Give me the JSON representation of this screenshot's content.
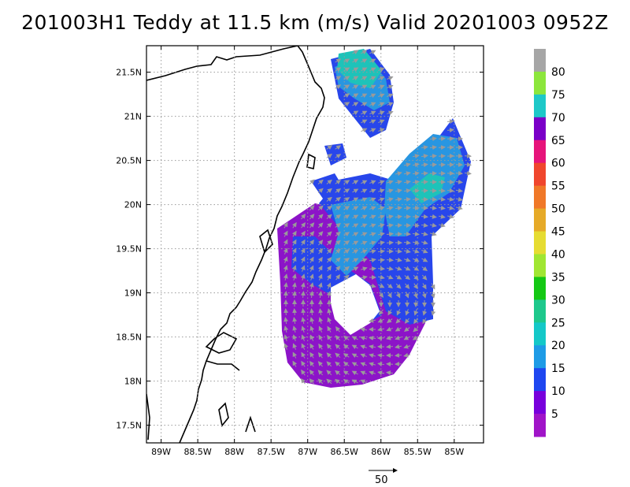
{
  "title": "201003H1 Teddy at 11.5 km (m/s) Valid 20201003 0952Z",
  "map": {
    "lon_range": [
      -89.2,
      -84.6
    ],
    "lat_range": [
      17.3,
      21.8
    ],
    "lat_ticks": [
      {
        "value": 21.5,
        "label": "21.5N"
      },
      {
        "value": 21.0,
        "label": "21N"
      },
      {
        "value": 20.5,
        "label": "20.5N"
      },
      {
        "value": 20.0,
        "label": "20N"
      },
      {
        "value": 19.5,
        "label": "19.5N"
      },
      {
        "value": 19.0,
        "label": "19N"
      },
      {
        "value": 18.5,
        "label": "18.5N"
      },
      {
        "value": 18.0,
        "label": "18N"
      },
      {
        "value": 17.5,
        "label": "17.5N"
      }
    ],
    "lon_ticks": [
      {
        "value": -89.0,
        "label": "89W"
      },
      {
        "value": -88.5,
        "label": "88.5W"
      },
      {
        "value": -88.0,
        "label": "88W"
      },
      {
        "value": -87.5,
        "label": "87.5W"
      },
      {
        "value": -87.0,
        "label": "87W"
      },
      {
        "value": -86.5,
        "label": "86.5W"
      },
      {
        "value": -86.0,
        "label": "86W"
      },
      {
        "value": -85.5,
        "label": "85.5W"
      },
      {
        "value": -85.0,
        "label": "85W"
      }
    ],
    "grid": "dotted"
  },
  "colorbar": {
    "labels": [
      "80",
      "75",
      "70",
      "65",
      "60",
      "55",
      "50",
      "45",
      "40",
      "35",
      "30",
      "25",
      "20",
      "15",
      "10",
      "5"
    ],
    "colors": [
      "#a6a6a6",
      "#8ce63c",
      "#1ec8c8",
      "#7a00c8",
      "#e6147a",
      "#f0462d",
      "#f07828",
      "#e6aa28",
      "#e6dc32",
      "#a0e632",
      "#14c814",
      "#1ec88c",
      "#14c8c8",
      "#1e9be6",
      "#1e46f0",
      "#7800dc",
      "#a014c8"
    ]
  },
  "reference_vector": {
    "label": "50"
  },
  "wind_field": {
    "regions": [
      {
        "name": "outer-ring",
        "level": "5-10",
        "color": "#8c14c8"
      },
      {
        "name": "band",
        "level": "10-15",
        "color": "#2846eb"
      },
      {
        "name": "north-band",
        "level": "15-20",
        "color": "#2896e1"
      },
      {
        "name": "north-core",
        "level": "20-25",
        "color": "#1ec3b9"
      }
    ]
  }
}
